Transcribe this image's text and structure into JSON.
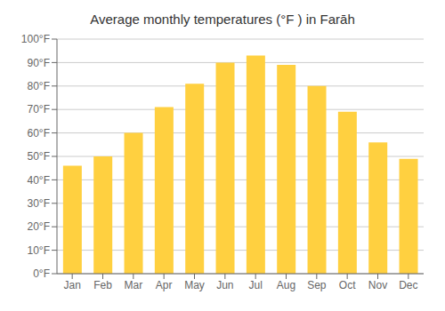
{
  "chart_data": {
    "type": "bar",
    "title": "Average monthly temperatures (°F ) in Farāh",
    "categories": [
      "Jan",
      "Feb",
      "Mar",
      "Apr",
      "May",
      "Jun",
      "Jul",
      "Aug",
      "Sep",
      "Oct",
      "Nov",
      "Dec"
    ],
    "values": [
      46,
      50,
      60,
      71,
      81,
      90,
      93,
      89,
      80,
      69,
      56,
      49
    ],
    "color": "#FFD040",
    "ylim": [
      0,
      100
    ],
    "yticks": [
      {
        "value": 0,
        "label": "0°F"
      },
      {
        "value": 10,
        "label": "10°F"
      },
      {
        "value": 20,
        "label": "20°F"
      },
      {
        "value": 30,
        "label": "30°F"
      },
      {
        "value": 40,
        "label": "40°F"
      },
      {
        "value": 50,
        "label": "50°F"
      },
      {
        "value": 60,
        "label": "60°F"
      },
      {
        "value": 70,
        "label": "70°F"
      },
      {
        "value": 80,
        "label": "80°F"
      },
      {
        "value": 90,
        "label": "90°F"
      },
      {
        "value": 100,
        "label": "100°F"
      }
    ],
    "grid": true
  }
}
